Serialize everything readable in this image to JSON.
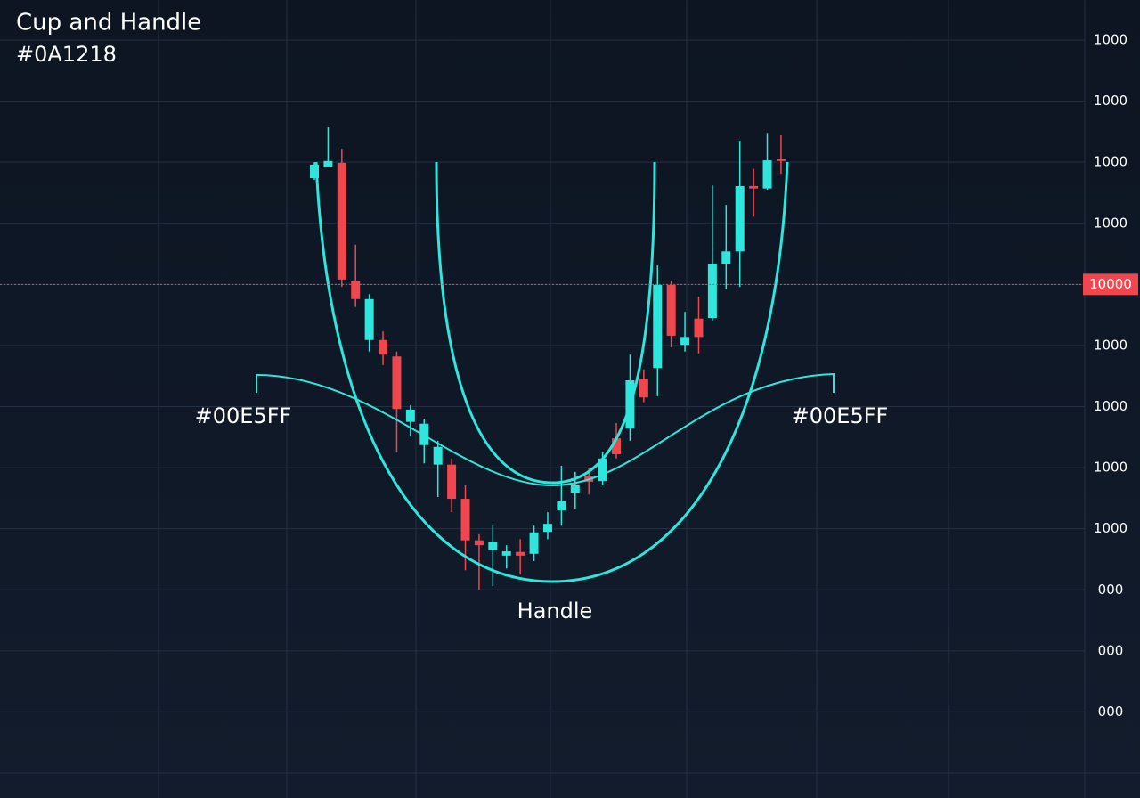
{
  "chart_data": {
    "type": "candlestick",
    "title": "Cup and Handle",
    "subtitle": "#0A1218",
    "annotations": {
      "left": "#00E5FF",
      "right": "#00E5FF",
      "bottom": "Handle"
    },
    "open": [
      9.74,
      9.93,
      9.99,
      8.05,
      7.09,
      7.09,
      6.82,
      5.75,
      5.37,
      5.05,
      5.05,
      4.49,
      3.81,
      3.65,
      3.56,
      3.62,
      3.59,
      3.95,
      4.3,
      4.59,
      4.86,
      4.78,
      5.48,
      5.64,
      6.45,
      6.63,
      7.99,
      7.01,
      7.44,
      7.45,
      8.34,
      8.54,
      9.61,
      9.57,
      10.05
    ],
    "high": [
      10.0,
      10.57,
      10.22,
      8.65,
      7.84,
      7.23,
      6.9,
      6.02,
      5.8,
      5.44,
      5.15,
      4.71,
      3.91,
      4.05,
      3.73,
      3.83,
      4.05,
      4.27,
      5.03,
      4.93,
      5.0,
      5.25,
      5.73,
      6.85,
      6.61,
      8.31,
      8.06,
      7.55,
      7.8,
      9.62,
      9.3,
      10.35,
      9.89,
      10.48,
      10.44
    ],
    "low": [
      9.71,
      9.92,
      7.96,
      7.63,
      6.9,
      6.68,
      5.25,
      5.51,
      5.07,
      4.52,
      4.27,
      3.32,
      3.0,
      3.06,
      3.35,
      3.25,
      3.47,
      3.83,
      4.05,
      4.32,
      4.56,
      4.71,
      5.15,
      5.44,
      6.07,
      6.17,
      6.97,
      6.9,
      6.87,
      7.41,
      7.92,
      7.96,
      9.11,
      9.55,
      9.81
    ],
    "close": [
      9.96,
      10.02,
      8.08,
      7.76,
      7.76,
      6.85,
      5.96,
      5.95,
      5.72,
      5.34,
      4.49,
      3.81,
      3.73,
      3.79,
      3.63,
      3.56,
      3.94,
      4.08,
      4.45,
      4.71,
      4.77,
      5.15,
      5.22,
      6.43,
      6.15,
      7.99,
      7.16,
      7.14,
      7.14,
      8.34,
      8.54,
      9.61,
      9.57,
      10.03,
      10.02
    ],
    "up_color": "#2ee6dc",
    "down_color": "#f0474f",
    "ylim": [
      0,
      12
    ],
    "yticks": [
      12,
      11,
      10,
      9,
      8,
      7,
      6,
      5,
      4,
      3,
      2,
      1
    ],
    "price_labels": [
      "1000",
      "1000",
      "1000",
      "1000",
      "10000",
      "1000",
      "1000",
      "1000",
      "1000",
      "000",
      "000",
      "000"
    ],
    "current_price": 8,
    "grid": true
  }
}
